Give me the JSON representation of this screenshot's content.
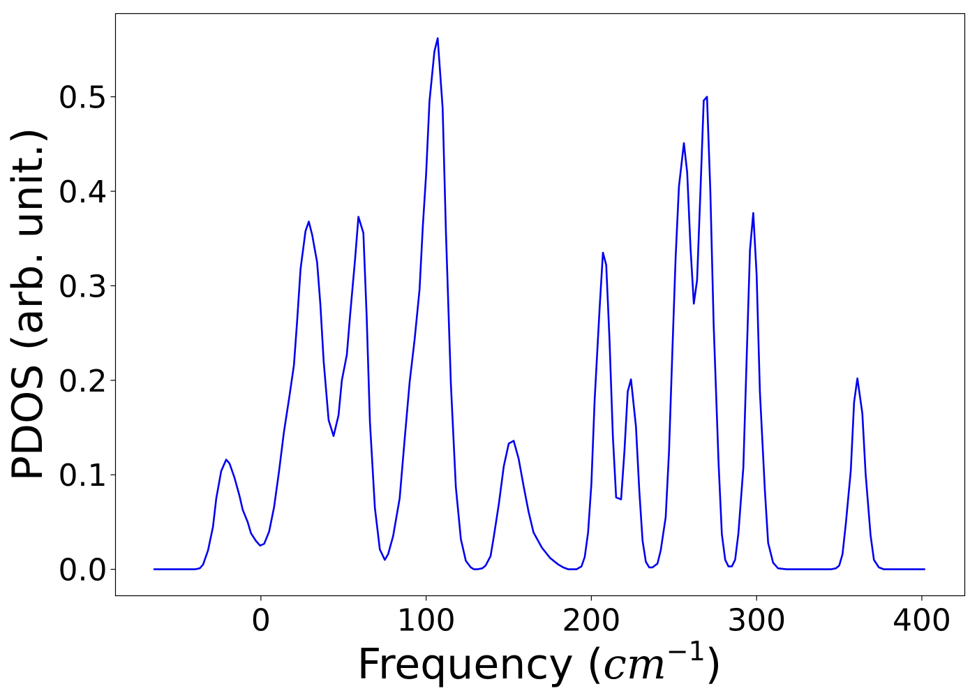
{
  "chart_data": {
    "type": "line",
    "title": "",
    "xlabel_prefix": "Frequency (",
    "xlabel_var": "cm",
    "xlabel_exp": "−1",
    "xlabel_suffix": ")",
    "ylabel": "PDOS (arb. unit.)",
    "xlim": [
      -88,
      426
    ],
    "ylim": [
      -0.028,
      0.588
    ],
    "xticks": [
      0,
      100,
      200,
      300,
      400
    ],
    "yticks": [
      0.0,
      0.1,
      0.2,
      0.3,
      0.4,
      0.5
    ],
    "xtick_labels": [
      "0",
      "100",
      "200",
      "300",
      "400"
    ],
    "ytick_labels": [
      "0.0",
      "0.1",
      "0.2",
      "0.3",
      "0.4",
      "0.5"
    ],
    "grid": false,
    "legend": "none",
    "series": [
      {
        "color": "#0000ee",
        "x": [
          -65,
          -40,
          -37,
          -35,
          -32,
          -29,
          -27,
          -24,
          -21,
          -19,
          -16,
          -13,
          -11,
          -8,
          -6,
          -3,
          -0.5,
          2,
          5,
          8,
          11,
          14,
          17,
          20,
          22,
          24,
          27,
          29,
          31,
          34,
          36,
          38,
          41,
          44,
          47,
          49,
          52,
          54,
          57,
          59,
          62,
          64,
          66,
          69,
          72,
          75,
          77,
          80,
          84,
          87,
          90,
          93,
          96,
          98,
          100,
          102,
          105,
          107,
          110,
          112,
          115,
          118,
          121,
          124,
          127,
          129,
          131,
          134,
          136,
          139,
          141,
          144,
          147,
          150,
          153,
          156,
          159,
          162,
          165,
          170,
          175,
          180,
          183,
          186,
          188,
          191,
          194,
          196,
          198,
          200,
          202,
          205,
          207,
          209,
          211,
          213,
          215,
          218,
          220,
          222,
          224,
          227,
          229,
          231,
          233,
          235,
          237,
          240,
          242,
          245,
          247,
          249,
          251,
          253,
          256,
          258,
          260,
          262,
          264,
          266,
          268,
          270,
          272,
          274,
          277,
          279,
          281,
          283,
          285,
          287,
          289,
          292,
          294,
          296,
          298,
          300,
          302,
          305,
          307,
          310,
          313,
          318,
          330,
          345,
          348,
          350,
          352,
          354,
          357,
          359,
          361,
          364,
          366,
          369,
          371,
          374,
          377,
          380,
          390,
          402
        ],
        "y": [
          0,
          0,
          0.001,
          0.005,
          0.02,
          0.045,
          0.075,
          0.104,
          0.116,
          0.112,
          0.097,
          0.078,
          0.063,
          0.05,
          0.038,
          0.03,
          0.025,
          0.027,
          0.04,
          0.066,
          0.104,
          0.146,
          0.18,
          0.216,
          0.264,
          0.318,
          0.358,
          0.368,
          0.354,
          0.325,
          0.28,
          0.22,
          0.158,
          0.141,
          0.163,
          0.2,
          0.227,
          0.269,
          0.328,
          0.373,
          0.356,
          0.268,
          0.156,
          0.065,
          0.021,
          0.01,
          0.016,
          0.035,
          0.075,
          0.137,
          0.198,
          0.243,
          0.296,
          0.363,
          0.418,
          0.495,
          0.548,
          0.562,
          0.488,
          0.357,
          0.196,
          0.087,
          0.032,
          0.009,
          0.002,
          0,
          0,
          0.001,
          0.004,
          0.014,
          0.035,
          0.069,
          0.109,
          0.133,
          0.136,
          0.117,
          0.088,
          0.061,
          0.039,
          0.023,
          0.012,
          0.005,
          0.002,
          0,
          0,
          0,
          0.003,
          0.013,
          0.039,
          0.09,
          0.179,
          0.276,
          0.335,
          0.322,
          0.243,
          0.141,
          0.076,
          0.074,
          0.125,
          0.188,
          0.201,
          0.151,
          0.083,
          0.03,
          0.008,
          0.002,
          0.002,
          0.006,
          0.02,
          0.055,
          0.125,
          0.229,
          0.331,
          0.405,
          0.451,
          0.42,
          0.34,
          0.281,
          0.306,
          0.4,
          0.496,
          0.5,
          0.4,
          0.26,
          0.112,
          0.037,
          0.01,
          0.003,
          0.003,
          0.01,
          0.038,
          0.108,
          0.225,
          0.338,
          0.377,
          0.312,
          0.188,
          0.084,
          0.028,
          0.007,
          0.001,
          0,
          0,
          0,
          0.001,
          0.004,
          0.016,
          0.048,
          0.104,
          0.177,
          0.202,
          0.165,
          0.101,
          0.036,
          0.01,
          0.002,
          0,
          0,
          0,
          0
        ]
      }
    ]
  }
}
